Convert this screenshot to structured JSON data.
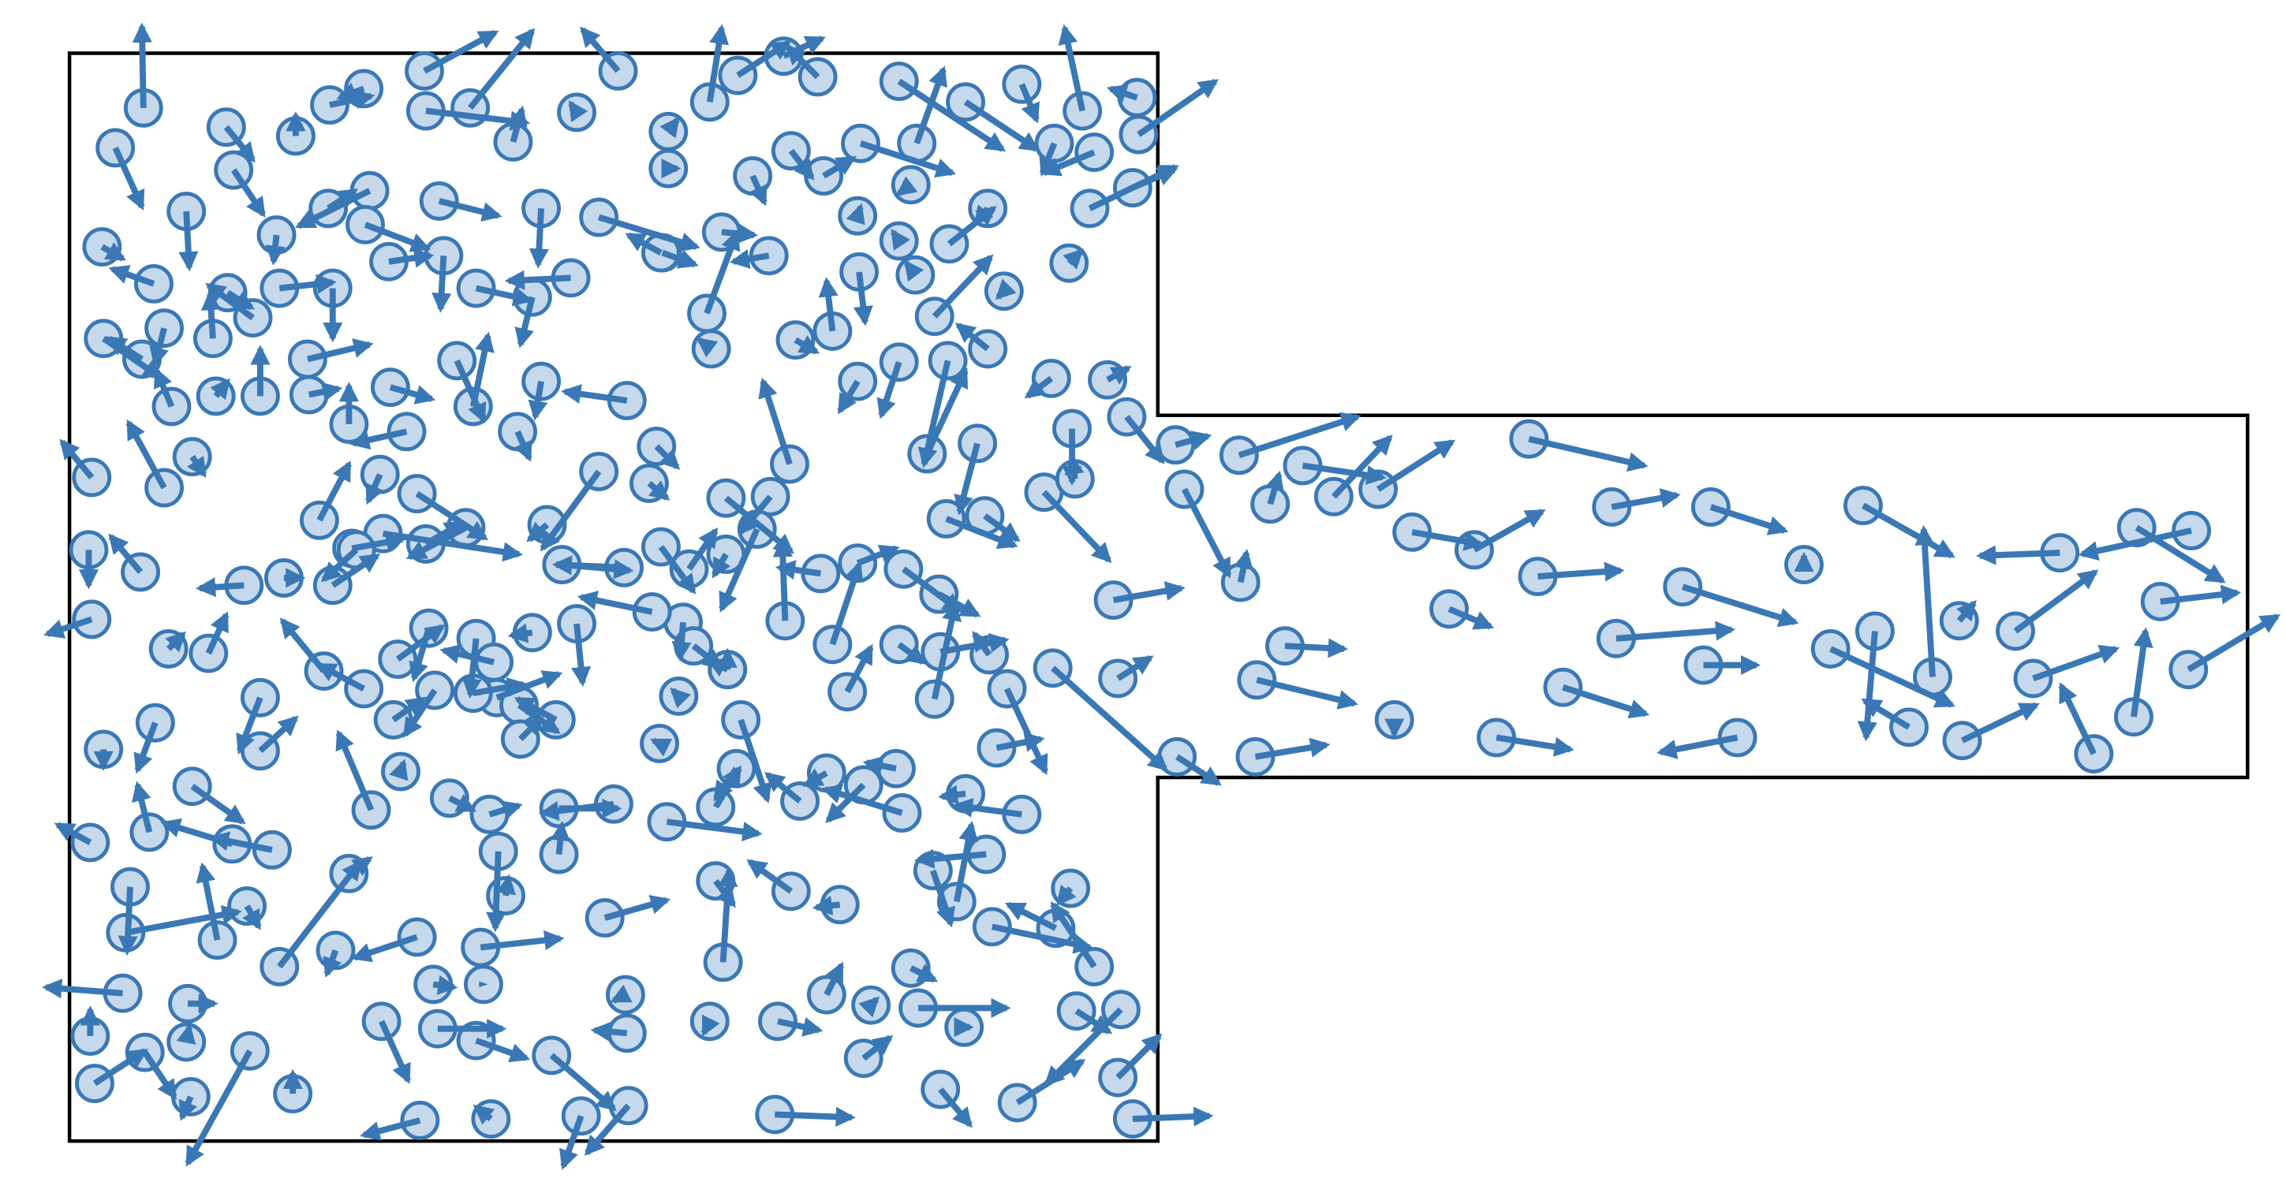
{
  "colors": {
    "particle_fill": "#c6d9ec",
    "particle_stroke": "#3a78b5",
    "arrow": "#3a78b5",
    "boundary": "#000000",
    "background": "#ffffff"
  },
  "legend": "none",
  "title": "",
  "container": {
    "shape": "square chamber with rectangular outlet channel on the right",
    "outline": "black line"
  },
  "particles": {
    "glyph": "circle with velocity arrow",
    "counted_region_chamber_sample": 0
  }
}
